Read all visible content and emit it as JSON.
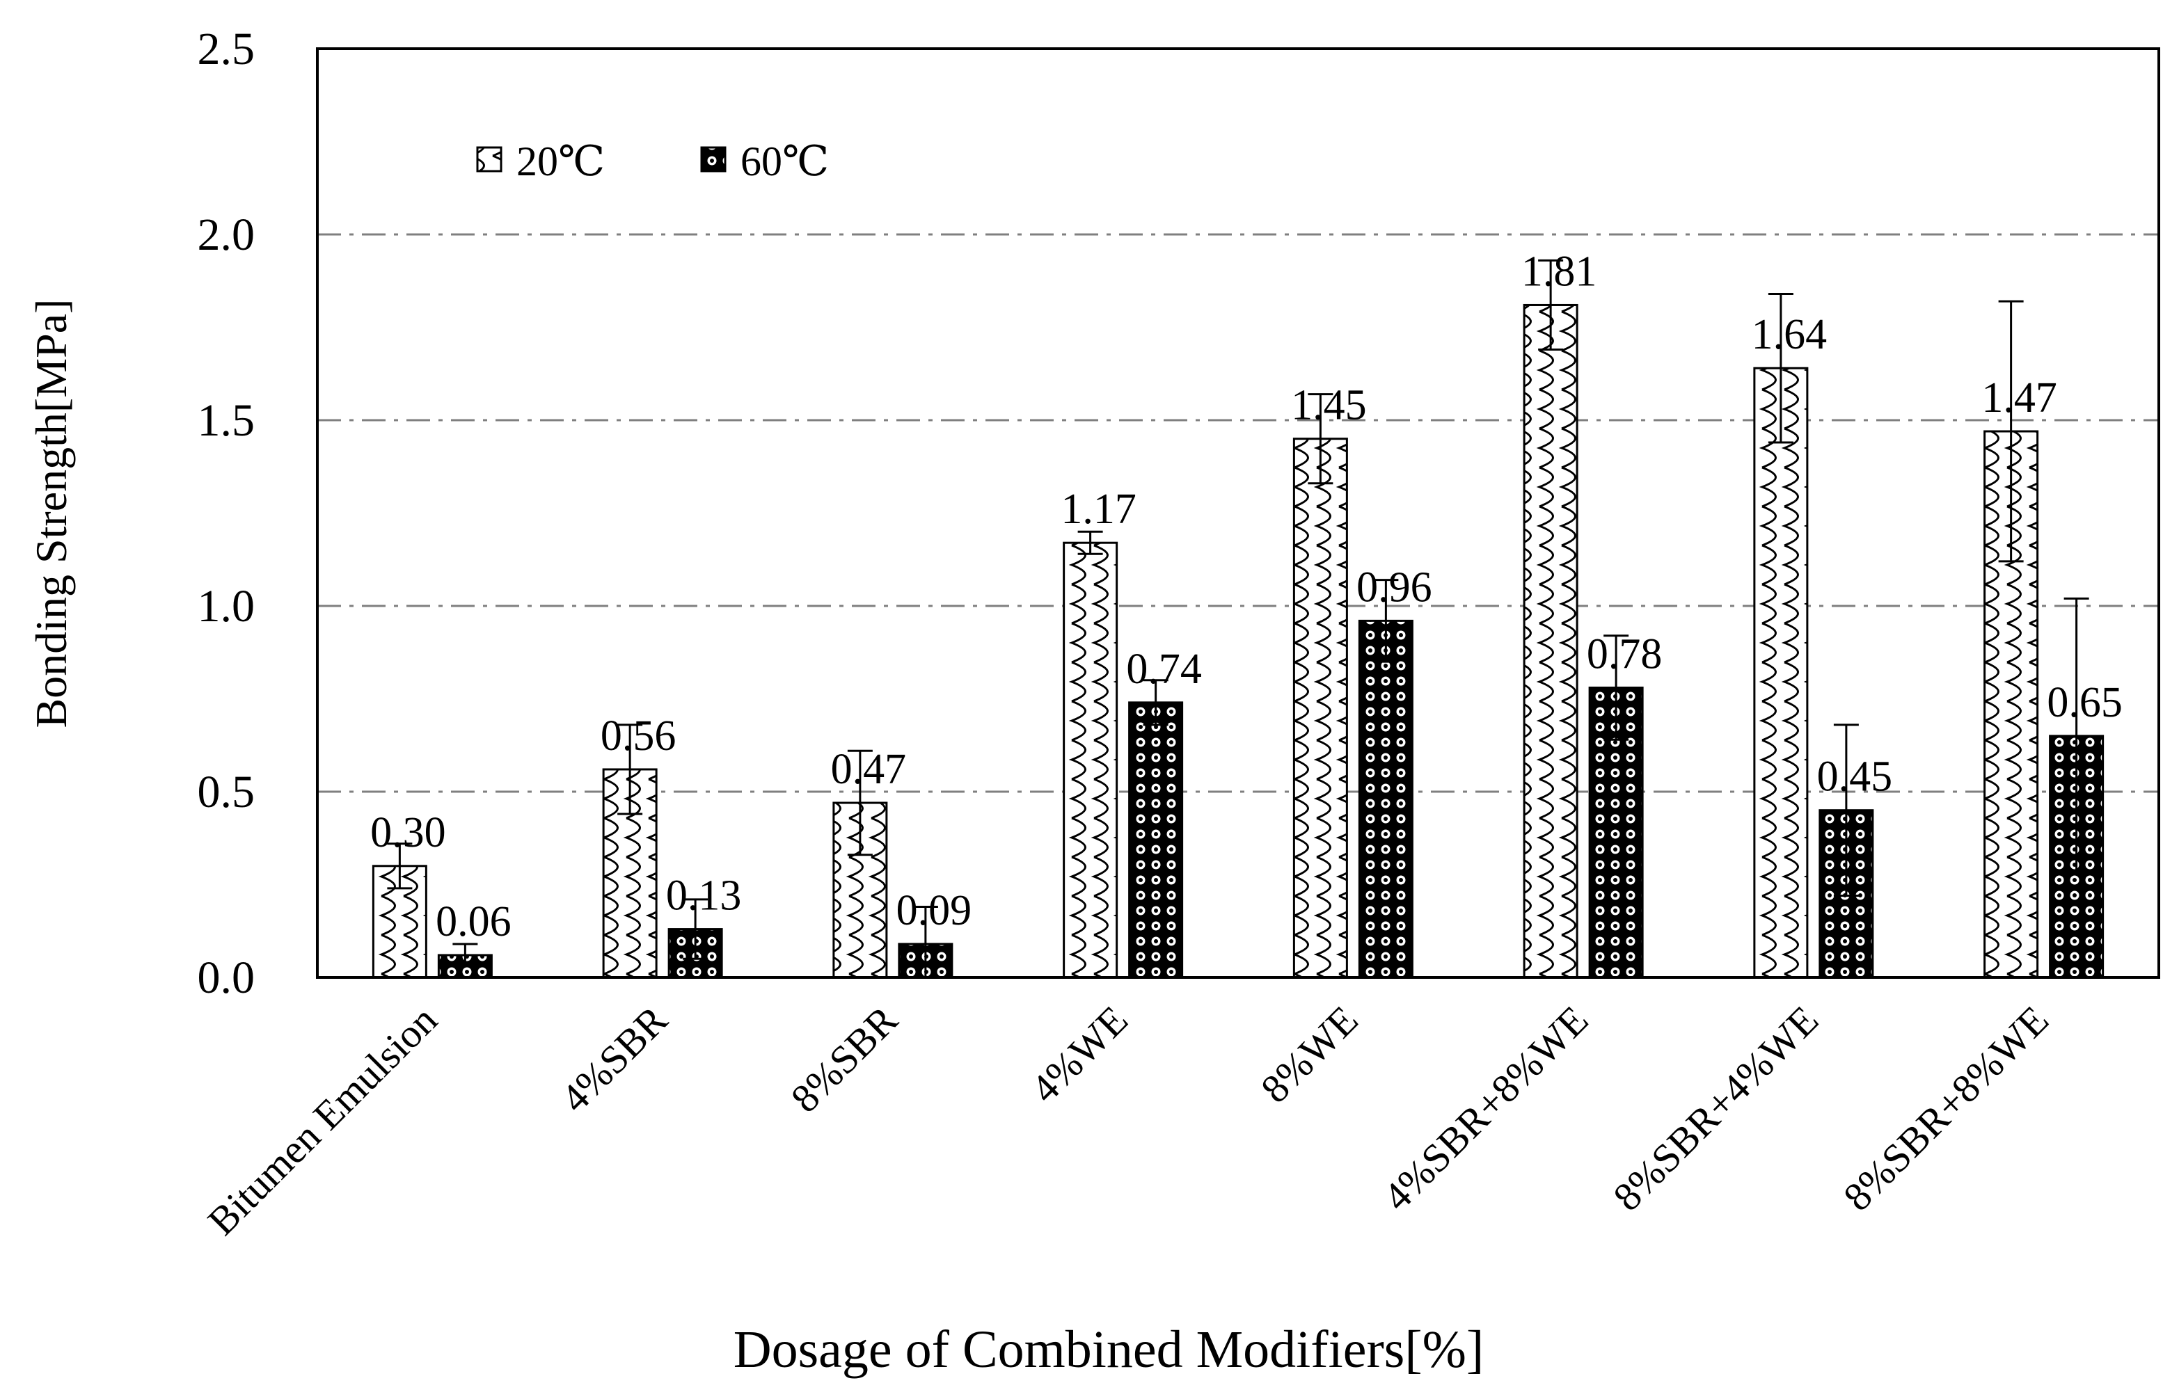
{
  "chart_data": {
    "type": "bar",
    "title": "",
    "xlabel": "Dosage of Combined Modifiers[%]",
    "ylabel": "Bonding Strength[MPa]",
    "ylim": [
      0,
      2.5
    ],
    "yticks": [
      "0.0",
      "0.5",
      "1.0",
      "1.5",
      "2.0",
      "2.5"
    ],
    "grid": true,
    "legend_position": "top-left",
    "categories": [
      "Bitumen Emulsion",
      "4%SBR",
      "8%SBR",
      "4%WE",
      "8%WE",
      "4%SBR+8%WE",
      "8%SBR+4%WE",
      "8%SBR+8%WE"
    ],
    "series": [
      {
        "name": "20℃",
        "values": [
          0.3,
          0.56,
          0.47,
          1.17,
          1.45,
          1.81,
          1.64,
          1.47
        ],
        "labels": [
          "0.30",
          "0.56",
          "0.47",
          "1.17",
          "1.45",
          "1.81",
          "1.64",
          "1.47"
        ],
        "errors": [
          0.06,
          0.12,
          0.14,
          0.03,
          0.12,
          0.12,
          0.2,
          0.35
        ]
      },
      {
        "name": "60℃",
        "values": [
          0.06,
          0.13,
          0.09,
          0.74,
          0.96,
          0.78,
          0.45,
          0.65
        ],
        "labels": [
          "0.06",
          "0.13",
          "0.09",
          "0.74",
          "0.96",
          "0.78",
          "0.45",
          "0.65"
        ],
        "errors": [
          0.03,
          0.08,
          0.1,
          0.06,
          0.11,
          0.14,
          0.23,
          0.37
        ]
      }
    ]
  }
}
